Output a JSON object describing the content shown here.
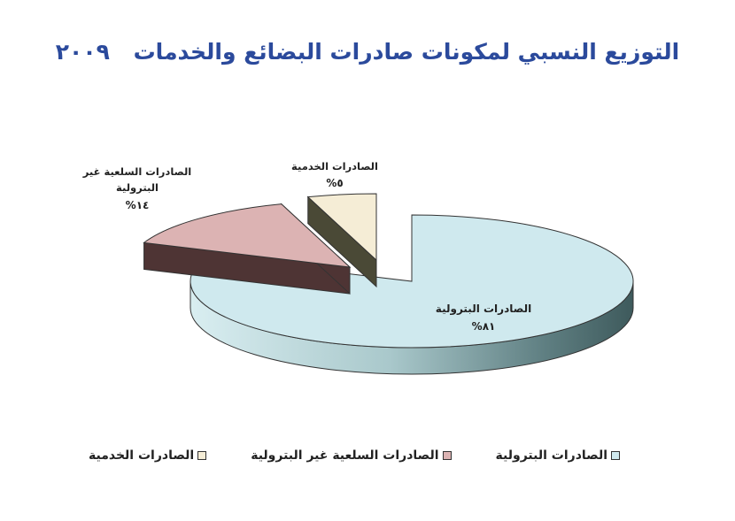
{
  "chart_data": {
    "type": "pie",
    "title": "التوزيع النسبي لمكونات صادرات البضائع والخدمات",
    "title_year": "٢٠٠٩",
    "slices": [
      {
        "name": "الصادرات البترولية",
        "value": 81,
        "label": "٨١%",
        "color": "#cfe9ee",
        "side_color": "#4a6a6c"
      },
      {
        "name": "الصادرات السلعية غير البترولية",
        "value": 14,
        "label": "١٤%",
        "label_line1": "الصادرات السلعية غير",
        "label_line2": "البترولية",
        "color": "#dcb3b3",
        "side_color": "#4e3434"
      },
      {
        "name": "الصادرات الخدمية",
        "value": 5,
        "label": "٥%",
        "color": "#f5edd6",
        "side_color": "#4a4936"
      }
    ],
    "legend_position": "bottom"
  }
}
